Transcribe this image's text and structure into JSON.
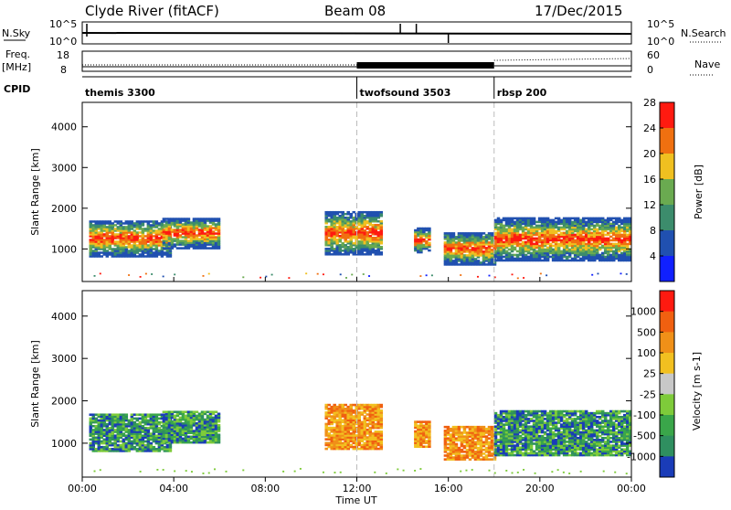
{
  "header": {
    "station": "Clyde River (fitACF)",
    "beam": "Beam 08",
    "date": "17/Dec/2015"
  },
  "strip": {
    "nsky_label": "N.Sky",
    "nsearch_label": "N.Search",
    "freq_label": "Freq.",
    "freq_unit": "[MHz]",
    "nave_label": "Nave",
    "cpid_label": "CPID",
    "noise_ticks_left": [
      "10^5",
      "10^0"
    ],
    "noise_ticks_right": [
      "10^5",
      "10^0"
    ],
    "freq_ticks": [
      "18",
      "8"
    ],
    "nave_ticks": [
      "60",
      "0"
    ],
    "cpid_segments": [
      {
        "start_hr": 0,
        "label": "themis 3300"
      },
      {
        "start_hr": 12,
        "label": "twofsound 3503"
      },
      {
        "start_hr": 18,
        "label": "rbsp 200"
      }
    ]
  },
  "xaxis": {
    "label": "Time UT",
    "ticks": [
      "00:00",
      "04:00",
      "08:00",
      "12:00",
      "16:00",
      "20:00",
      "00:00"
    ],
    "range_hr": [
      0,
      24
    ]
  },
  "chart_data": [
    {
      "type": "heatmap",
      "name": "power",
      "ylabel": "Slant Range [km]",
      "yticks": [
        "1000",
        "2000",
        "3000",
        "4000"
      ],
      "ylim": [
        200,
        4600
      ],
      "colorbar_label": "Power [dB]",
      "colorbar_ticks": [
        "4",
        "8",
        "12",
        "16",
        "20",
        "24",
        "28"
      ],
      "colorbar_colors": [
        "#1020ff",
        "#2050b0",
        "#3c8c6c",
        "#6aaa50",
        "#f0c020",
        "#f07010",
        "#ff1a10"
      ],
      "echo_regions": [
        {
          "t0": 0.3,
          "t1": 3.8,
          "r0": 800,
          "r1": 1700
        },
        {
          "t0": 3.5,
          "t1": 6.0,
          "r0": 1000,
          "r1": 1750
        },
        {
          "t0": 10.6,
          "t1": 13.0,
          "r0": 850,
          "r1": 1900
        },
        {
          "t0": 14.5,
          "t1": 15.2,
          "r0": 900,
          "r1": 1500
        },
        {
          "t0": 15.8,
          "t1": 18.0,
          "r0": 600,
          "r1": 1400
        },
        {
          "t0": 18.0,
          "t1": 24.0,
          "r0": 700,
          "r1": 1750
        }
      ]
    },
    {
      "type": "heatmap",
      "name": "velocity",
      "ylabel": "Slant Range [km]",
      "yticks": [
        "1000",
        "2000",
        "3000",
        "4000"
      ],
      "ylim": [
        200,
        4600
      ],
      "colorbar_label": "Velocity [m s-1]",
      "colorbar_ticks": [
        "1000",
        "500",
        "100",
        "25",
        "-25",
        "-100",
        "-500",
        "-1000"
      ],
      "colorbar_colors": [
        "#1a3cb8",
        "#2f8f60",
        "#3aa64a",
        "#7ecb3a",
        "#c8c8c8",
        "#f2c020",
        "#f09018",
        "#f06010",
        "#ff1a10"
      ],
      "echo_regions": [
        {
          "t0": 0.3,
          "t1": 3.8,
          "r0": 800,
          "r1": 1700
        },
        {
          "t0": 3.5,
          "t1": 6.0,
          "r0": 1000,
          "r1": 1750
        },
        {
          "t0": 10.6,
          "t1": 13.0,
          "r0": 850,
          "r1": 1900
        },
        {
          "t0": 14.5,
          "t1": 15.2,
          "r0": 900,
          "r1": 1500
        },
        {
          "t0": 15.8,
          "t1": 18.0,
          "r0": 600,
          "r1": 1400
        },
        {
          "t0": 18.0,
          "t1": 24.0,
          "r0": 700,
          "r1": 1750
        }
      ]
    }
  ]
}
